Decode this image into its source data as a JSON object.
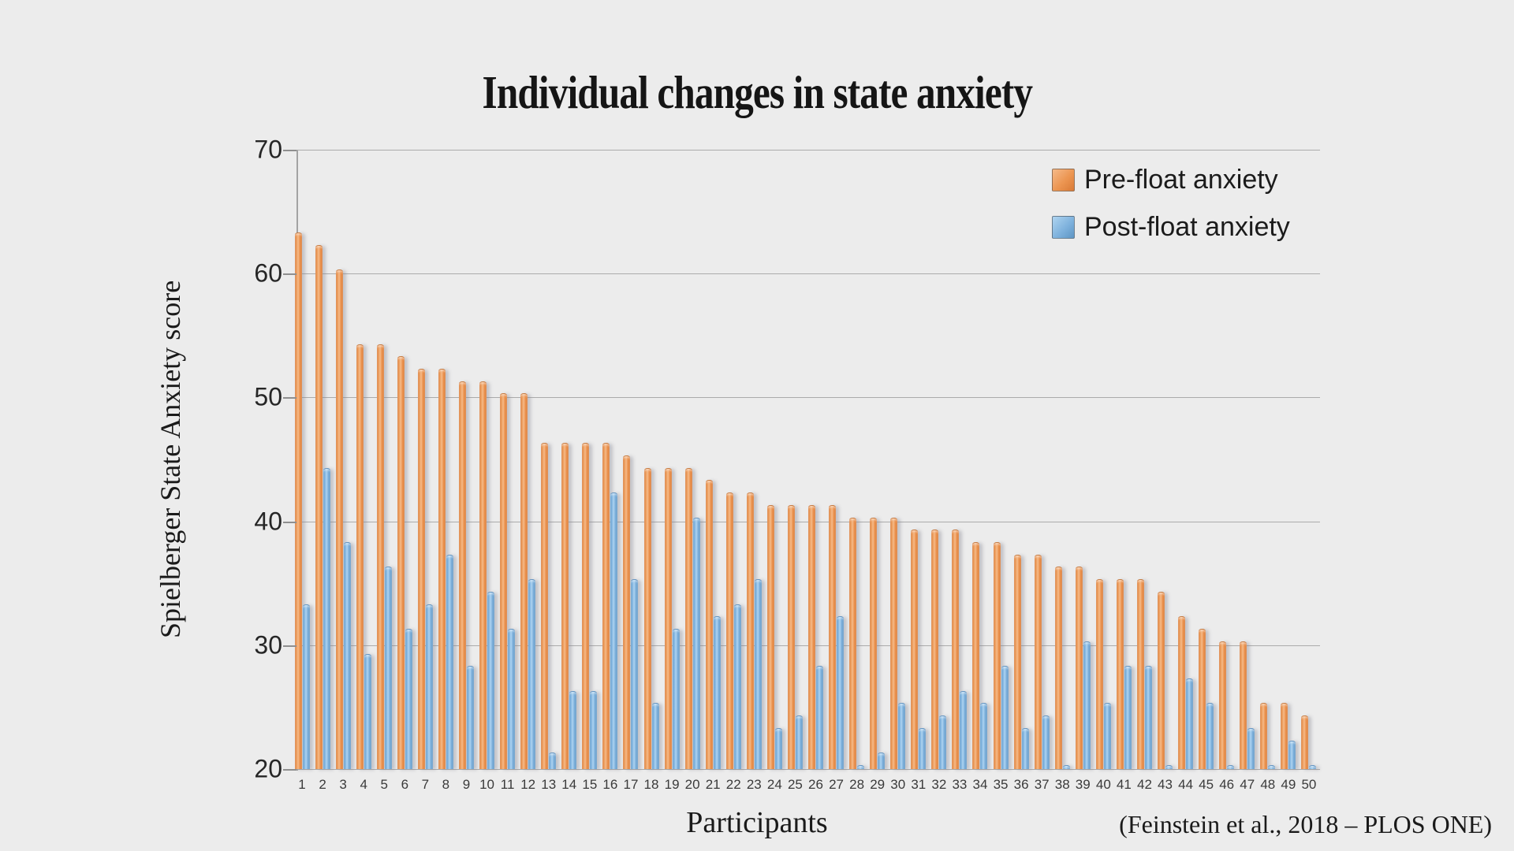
{
  "title": "Individual changes in state anxiety",
  "y_axis": {
    "label": "Spielberger State Anxiety score"
  },
  "x_axis": {
    "label": "Participants"
  },
  "legend": {
    "pre_label": "Pre-float anxiety",
    "post_label": "Post-float anxiety"
  },
  "citation": "(Feinstein et al., 2018 – PLOS ONE)",
  "colors": {
    "pre": "#EC9551",
    "post": "#7FB2DD",
    "background": "#ECECEC",
    "gridline": "#ABABAB"
  },
  "chart_data": {
    "type": "bar",
    "title": "Individual changes in state anxiety",
    "xlabel": "Participants",
    "ylabel": "Spielberger State Anxiety score",
    "ylim": [
      20,
      70
    ],
    "yticks": [
      20,
      30,
      40,
      50,
      60,
      70
    ],
    "grid": true,
    "legend_position": "top-right",
    "categories": [
      1,
      2,
      3,
      4,
      5,
      6,
      7,
      8,
      9,
      10,
      11,
      12,
      13,
      14,
      15,
      16,
      17,
      18,
      19,
      20,
      21,
      22,
      23,
      24,
      25,
      26,
      27,
      28,
      29,
      30,
      31,
      32,
      33,
      34,
      35,
      36,
      37,
      38,
      39,
      40,
      41,
      42,
      43,
      44,
      45,
      46,
      47,
      48,
      49,
      50
    ],
    "series": [
      {
        "name": "Pre-float anxiety",
        "color": "#EC9551",
        "values": [
          63,
          62,
          60,
          54,
          54,
          53,
          52,
          52,
          51,
          51,
          50,
          50,
          46,
          46,
          46,
          46,
          45,
          44,
          44,
          44,
          43,
          42,
          42,
          41,
          41,
          41,
          41,
          40,
          40,
          40,
          39,
          39,
          39,
          38,
          38,
          37,
          37,
          36,
          36,
          35,
          35,
          35,
          34,
          32,
          31,
          30,
          30,
          25,
          25,
          24
        ]
      },
      {
        "name": "Post-float anxiety",
        "color": "#7FB2DD",
        "values": [
          33,
          44,
          38,
          29,
          36,
          31,
          33,
          37,
          28,
          34,
          31,
          35,
          21,
          26,
          26,
          42,
          35,
          25,
          31,
          40,
          32,
          33,
          35,
          23,
          24,
          28,
          32,
          20,
          21,
          25,
          23,
          24,
          26,
          25,
          28,
          23,
          24,
          20,
          30,
          25,
          28,
          28,
          20,
          27,
          25,
          20,
          23,
          20,
          22,
          20
        ]
      }
    ]
  }
}
